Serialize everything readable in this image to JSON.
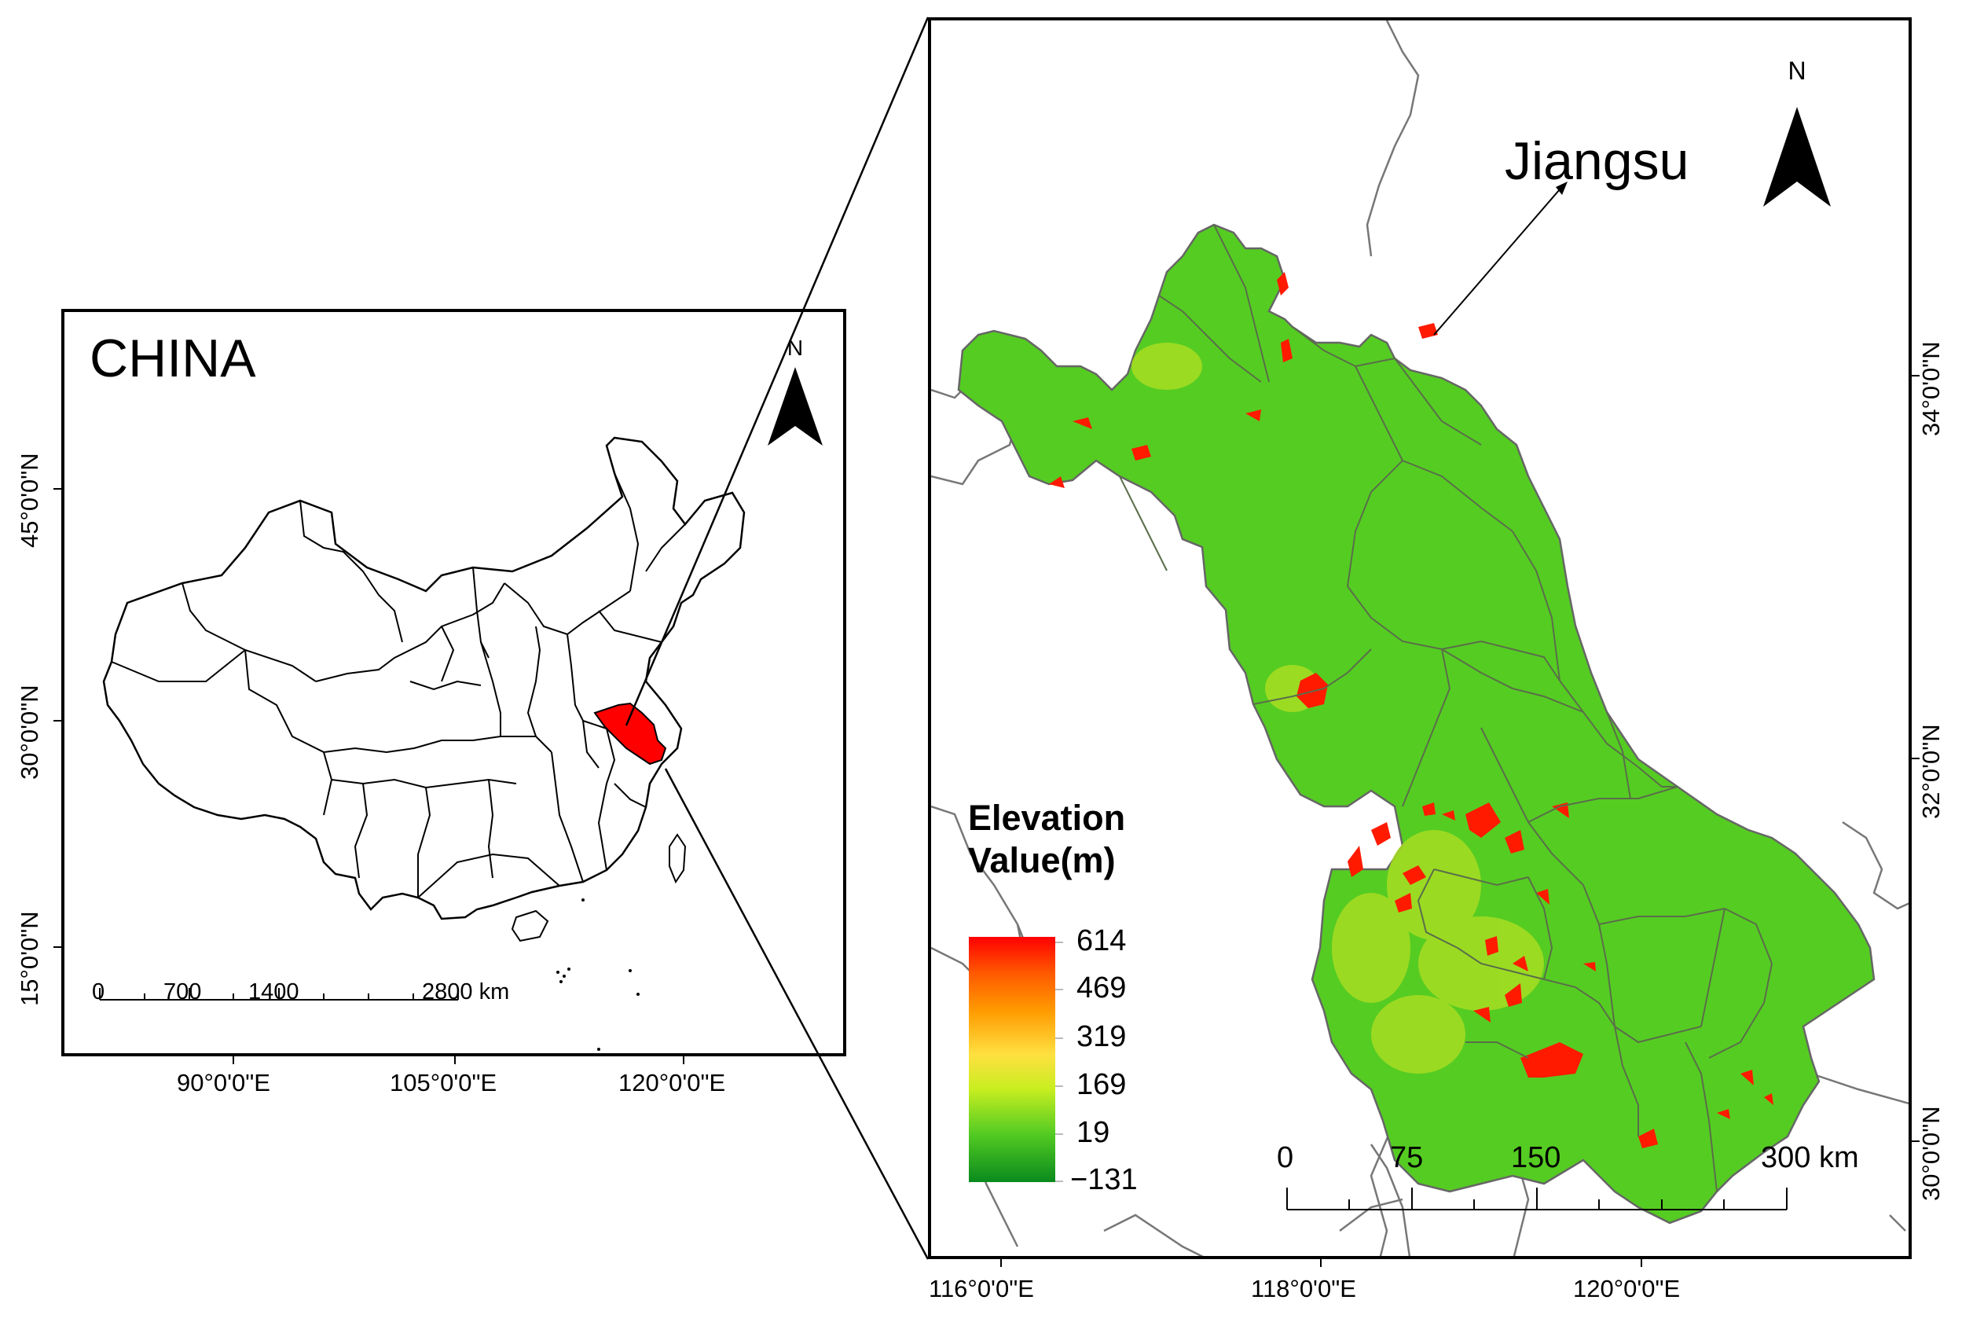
{
  "china_map": {
    "title": "CHINA",
    "north_label": "N",
    "scale_labels": [
      "0",
      "700",
      "1400",
      "2800 km"
    ],
    "lon_labels": [
      "90°0'0\"E",
      "105°0'0\"E",
      "120°0'0\"E"
    ],
    "lat_labels": [
      "45°0'0\"N",
      "30°0'0\"N",
      "15°0'0\"N"
    ],
    "highlight_color": "#ff0000"
  },
  "jiangsu_map": {
    "title": "Jiangsu",
    "north_label": "N",
    "scale_labels": [
      "0",
      "75",
      "150",
      "300 km"
    ],
    "lon_labels": [
      "116°0'0\"E",
      "118°0'0\"E",
      "120°0'0\"E"
    ],
    "lat_labels": [
      "34°0'0\"N",
      "32°0'0\"N",
      "30°0'0\"N"
    ],
    "land_color": "#55cc22"
  },
  "legend": {
    "title_line1": "Elevation",
    "title_line2": "Value(m)",
    "values": [
      "614",
      "469",
      "319",
      "169",
      "19",
      "−131"
    ],
    "colors": [
      "#ff0000",
      "#ff9a00",
      "#ffe040",
      "#55cc22",
      "#0a8a1e"
    ]
  }
}
